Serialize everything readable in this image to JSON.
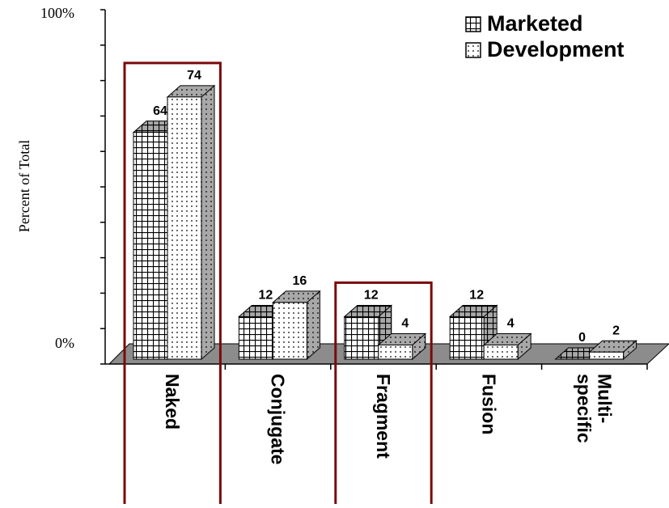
{
  "chart_data": {
    "type": "bar3d",
    "y_label": "Percent of Total",
    "categories": [
      "Naked",
      "Conjugate",
      "Fragment",
      "Fusion",
      "Multi-\nspecific"
    ],
    "series": [
      {
        "name": "Marketed",
        "pattern": "grid",
        "values": [
          64,
          12,
          12,
          12,
          0
        ]
      },
      {
        "name": "Development",
        "pattern": "dots",
        "values": [
          74,
          16,
          4,
          4,
          2
        ]
      }
    ],
    "ylim": [
      0,
      100
    ],
    "yticks": [
      {
        "value": 0,
        "label": "0%"
      },
      {
        "value": 10,
        "label": null
      },
      {
        "value": 20,
        "label": null
      },
      {
        "value": 30,
        "label": null
      },
      {
        "value": 40,
        "label": null
      },
      {
        "value": 50,
        "label": null
      },
      {
        "value": 60,
        "label": null
      },
      {
        "value": 70,
        "label": null
      },
      {
        "value": 80,
        "label": null
      },
      {
        "value": 90,
        "label": null
      },
      {
        "value": 100,
        "label": "100%"
      }
    ],
    "highlight": [
      0,
      2
    ],
    "highlight_color": "#7a0a0a",
    "floor_color": "#8c8c8c",
    "side_color": "#a8a8a8"
  }
}
